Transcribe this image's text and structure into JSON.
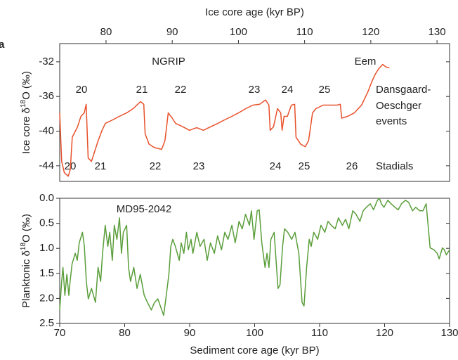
{
  "chart_data": [
    {
      "type": "line",
      "panel_label": "a",
      "xlabel": "Ice core age (kyr BP)",
      "xaxis_position": "top",
      "ylabel": {
        "prefix": "Ice core δ",
        "sup": "18",
        "suffix": "O (‰)"
      },
      "xlim": [
        73,
        131.9
      ],
      "xticks": [
        80,
        90,
        100,
        110,
        120,
        130
      ],
      "ylim": [
        -45.8,
        -29.9
      ],
      "yticks": [
        -32,
        -36,
        -40,
        -44
      ],
      "color": "#e8512b",
      "annotations": [
        "NGRIP",
        "Eem",
        "20",
        "21",
        "22",
        "23",
        "24",
        "25",
        "Dansgaard-",
        "Oeschger",
        "events",
        "20",
        "21",
        "22",
        "23",
        "24",
        "25",
        "26",
        "Stadials"
      ],
      "x": [
        73.0,
        73.3,
        73.7,
        74.3,
        74.6,
        74.9,
        75.7,
        76.2,
        76.7,
        77.0,
        77.3,
        77.8,
        78.3,
        78.8,
        79.4,
        79.9,
        81.0,
        82.0,
        83.1,
        84.1,
        85.2,
        85.7,
        85.9,
        86.5,
        87.3,
        88.4,
        88.9,
        89.4,
        90.0,
        90.5,
        91.6,
        92.6,
        93.7,
        94.7,
        95.8,
        96.9,
        97.9,
        99.0,
        100.0,
        101.1,
        102.2,
        103.2,
        104.1,
        104.6,
        104.8,
        105.3,
        105.9,
        106.4,
        106.6,
        106.9,
        107.4,
        108.0,
        108.5,
        108.7,
        109.4,
        110.1,
        110.6,
        111.2,
        111.7,
        112.8,
        113.8,
        114.9,
        115.4,
        115.6,
        116.5,
        117.5,
        118.6,
        119.6,
        120.2,
        120.7,
        121.2,
        121.8,
        122.3,
        122.8
      ],
      "values": [
        -37.9,
        -43.5,
        -44.8,
        -45.2,
        -44.4,
        -40.7,
        -39.5,
        -38.3,
        -37.9,
        -36.9,
        -43.1,
        -43.5,
        -42.3,
        -41.1,
        -39.9,
        -39.1,
        -38.7,
        -38.3,
        -37.9,
        -37.4,
        -36.6,
        -36.9,
        -40.3,
        -41.5,
        -41.9,
        -42.1,
        -41.1,
        -37.9,
        -38.5,
        -39.1,
        -39.5,
        -39.9,
        -39.6,
        -39.9,
        -39.5,
        -39.1,
        -38.7,
        -38.3,
        -37.9,
        -37.4,
        -37.0,
        -36.9,
        -36.4,
        -37.0,
        -39.9,
        -39.5,
        -37.4,
        -37.9,
        -39.9,
        -38.3,
        -38.3,
        -37.0,
        -36.9,
        -40.7,
        -41.5,
        -41.8,
        -41.1,
        -37.9,
        -37.4,
        -37.0,
        -37.0,
        -37.0,
        -36.9,
        -38.5,
        -38.3,
        -37.9,
        -37.0,
        -35.4,
        -34.2,
        -33.4,
        -32.8,
        -32.3,
        -32.6,
        -32.7
      ]
    },
    {
      "type": "line",
      "xlabel": "Sediment core age (kyr BP)",
      "xaxis_position": "bottom",
      "ylabel": {
        "prefix": "Planktonic δ",
        "sup": "18",
        "suffix": "O (‰)"
      },
      "xlim": [
        70,
        130
      ],
      "xticks": [
        70,
        80,
        90,
        100,
        110,
        120,
        130
      ],
      "ylim": [
        2.5,
        0.0
      ],
      "yticks": [
        {
          "value": 0.0,
          "label": "0.0"
        },
        0.5,
        {
          "value": 1.0,
          "label": "1.0"
        },
        1.5,
        {
          "value": 2.0,
          "label": "2.0"
        },
        2.5
      ],
      "color": "#5a9e3a",
      "annotations": [
        "MD95-2042"
      ],
      "x": [
        70.0,
        70.3,
        70.5,
        70.8,
        71.1,
        71.4,
        71.6,
        71.9,
        72.4,
        72.7,
        73.0,
        73.5,
        73.8,
        74.1,
        74.4,
        74.9,
        75.2,
        75.5,
        75.9,
        76.3,
        76.6,
        77.0,
        77.4,
        77.7,
        78.1,
        78.4,
        78.8,
        79.2,
        79.5,
        79.8,
        80.3,
        80.6,
        80.9,
        81.4,
        81.9,
        82.4,
        83.0,
        83.5,
        84.1,
        84.6,
        85.1,
        85.7,
        86.0,
        86.4,
        86.8,
        87.1,
        87.4,
        87.8,
        88.4,
        88.7,
        89.1,
        89.5,
        89.8,
        90.2,
        90.5,
        91.1,
        91.6,
        92.2,
        92.7,
        93.2,
        93.8,
        94.3,
        94.9,
        95.4,
        95.9,
        96.5,
        97.0,
        97.6,
        98.1,
        98.6,
        99.2,
        99.5,
        99.9,
        100.4,
        100.7,
        101.1,
        101.6,
        101.9,
        102.2,
        102.5,
        103.0,
        103.3,
        103.6,
        103.9,
        104.3,
        104.6,
        105.1,
        105.7,
        106.2,
        106.8,
        107.3,
        107.6,
        108.0,
        108.4,
        108.7,
        109.1,
        109.7,
        110.2,
        110.8,
        111.3,
        111.8,
        112.4,
        112.9,
        113.5,
        114.0,
        114.5,
        115.1,
        115.6,
        116.2,
        116.7,
        117.2,
        117.8,
        118.3,
        118.9,
        119.2,
        119.5,
        119.9,
        120.5,
        121.0,
        121.6,
        122.1,
        122.6,
        123.2,
        123.7,
        124.3,
        124.8,
        125.4,
        125.9,
        126.4,
        127.0,
        127.6,
        128.1,
        128.4,
        128.9,
        129.2,
        129.5,
        130.0
      ],
      "values": [
        2.23,
        1.66,
        1.38,
        1.94,
        1.52,
        1.94,
        1.66,
        1.31,
        1.1,
        1.24,
        0.89,
        0.68,
        0.96,
        1.66,
        2.01,
        1.8,
        1.94,
        2.08,
        1.38,
        1.66,
        1.1,
        0.54,
        0.96,
        0.68,
        1.24,
        0.54,
        0.82,
        0.39,
        1.1,
        0.68,
        0.54,
        1.38,
        1.66,
        1.38,
        1.8,
        1.52,
        1.94,
        2.08,
        2.23,
        2.08,
        2.01,
        2.23,
        2.34,
        1.94,
        1.52,
        0.96,
        0.82,
        0.96,
        1.24,
        0.89,
        1.1,
        0.68,
        1.03,
        0.82,
        1.1,
        0.68,
        0.96,
        0.82,
        1.24,
        0.89,
        1.1,
        0.75,
        1.03,
        0.68,
        0.82,
        0.54,
        0.89,
        0.46,
        0.61,
        0.32,
        0.54,
        0.25,
        0.82,
        0.25,
        0.23,
        0.89,
        1.38,
        1.1,
        1.38,
        0.82,
        0.68,
        1.24,
        1.8,
        1.73,
        0.96,
        0.61,
        0.68,
        0.82,
        0.68,
        1.1,
        2.08,
        2.15,
        1.38,
        0.82,
        0.96,
        0.68,
        0.82,
        0.54,
        0.68,
        0.46,
        0.54,
        0.61,
        0.39,
        0.54,
        0.42,
        0.61,
        0.25,
        0.32,
        0.46,
        0.25,
        0.18,
        0.11,
        0.23,
        0.04,
        0.0,
        0.11,
        0.18,
        0.04,
        0.11,
        0.18,
        0.23,
        0.11,
        0.04,
        0.08,
        0.25,
        0.18,
        0.25,
        0.25,
        0.11,
        0.99,
        1.03,
        1.1,
        1.21,
        0.99,
        1.03,
        1.13,
        1.03
      ]
    }
  ]
}
